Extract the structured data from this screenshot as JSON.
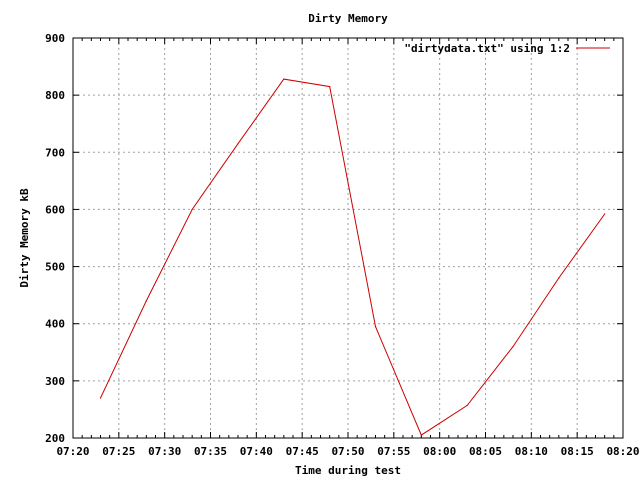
{
  "chart_data": {
    "type": "line",
    "title": "Dirty Memory",
    "xlabel": "Time during test",
    "ylabel": "Dirty Memory kB",
    "xlim": [
      "07:20",
      "08:20"
    ],
    "ylim": [
      200,
      900
    ],
    "grid": true,
    "legend_position": "top-right",
    "x_ticks": [
      "07:20",
      "07:25",
      "07:30",
      "07:35",
      "07:40",
      "07:45",
      "07:50",
      "07:55",
      "08:00",
      "08:05",
      "08:10",
      "08:15",
      "08:20"
    ],
    "y_ticks": [
      200,
      300,
      400,
      500,
      600,
      700,
      800,
      900
    ],
    "series": [
      {
        "name": "\"dirtydata.txt\" using 1:2",
        "color": "#cc0000",
        "x": [
          "07:23",
          "07:28",
          "07:33",
          "07:38",
          "07:43",
          "07:48",
          "07:53",
          "07:58",
          "08:03",
          "08:08",
          "08:13",
          "08:18"
        ],
        "values": [
          270,
          440,
          600,
          715,
          828,
          815,
          395,
          205,
          257,
          360,
          480,
          592
        ]
      }
    ]
  }
}
